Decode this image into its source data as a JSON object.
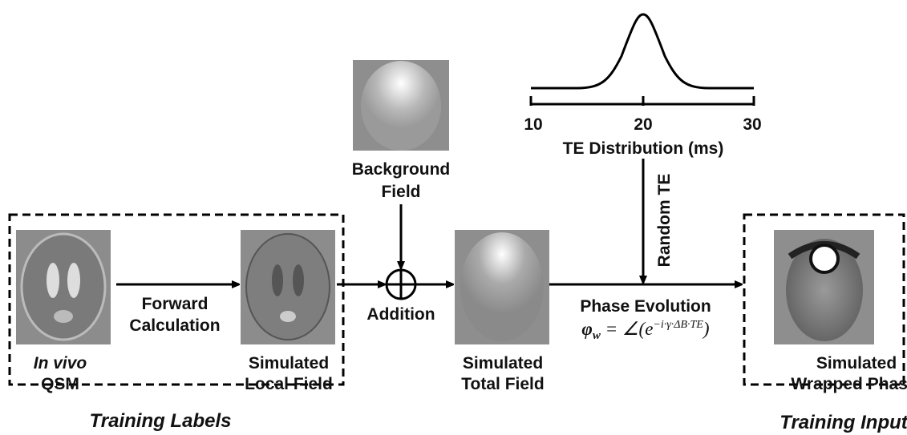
{
  "training_labels": {
    "title": "Training Labels",
    "qsm": {
      "line1": "In vivo",
      "line2": "QSM"
    },
    "forward": {
      "line1": "Forward",
      "line2": "Calculation"
    },
    "local_field": {
      "line1": "Simulated",
      "line2": "Local Field"
    }
  },
  "background_field": {
    "line1": "Background",
    "line2": "Field"
  },
  "addition": "Addition",
  "total_field": {
    "line1": "Simulated",
    "line2": "Total Field"
  },
  "te_distribution": {
    "ticks": [
      "10",
      "20",
      "30"
    ],
    "label": "TE Distribution (ms)"
  },
  "random_te": "Random TE",
  "phase_evolution": {
    "title": "Phase Evolution",
    "formula": {
      "symbol": "φ",
      "subscript": "w",
      "middle": " = ∠(e",
      "exponent": "−i·γ·ΔB·TE",
      "end": ")"
    }
  },
  "training_input": {
    "title": "Training Input",
    "wrapped_phase": {
      "line1": "Simulated",
      "line2": "Wrapped Phase"
    }
  }
}
